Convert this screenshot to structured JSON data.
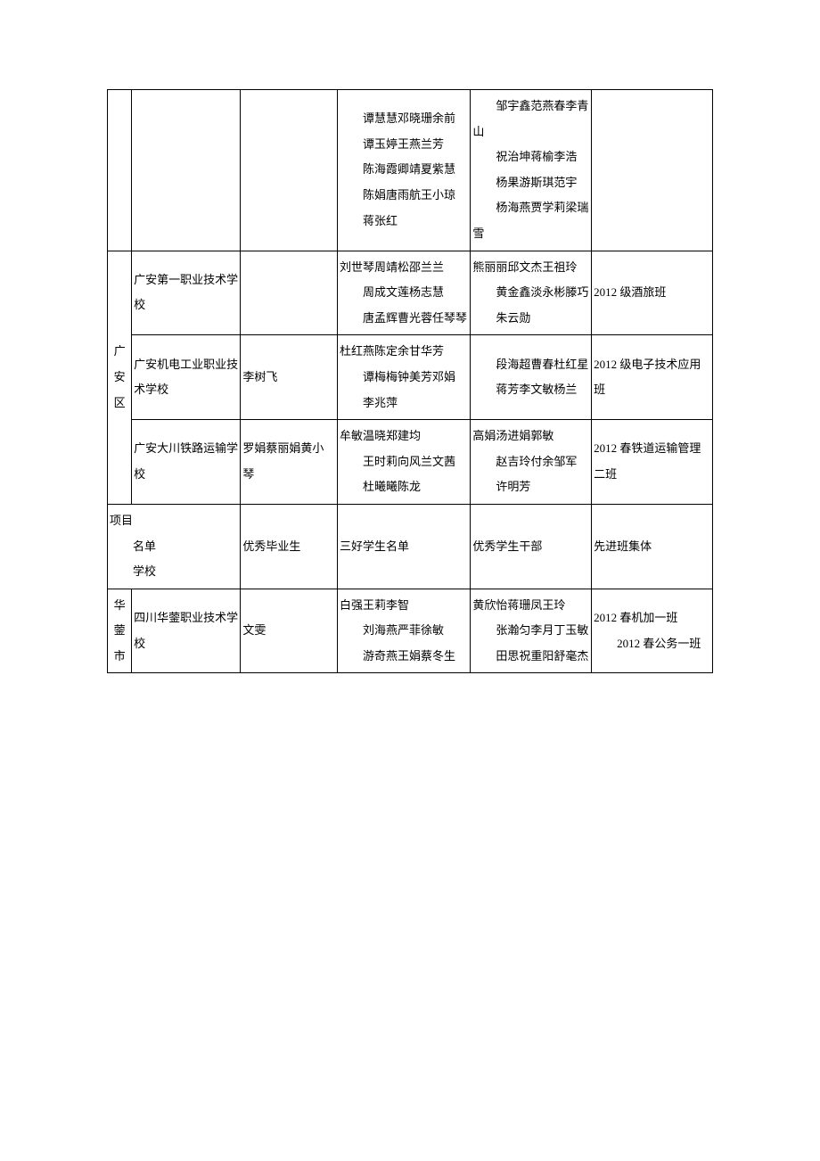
{
  "rows": [
    {
      "region": "",
      "school": "",
      "grad": "",
      "good": "　　谭慧慧邓晓珊余前\n\n　　谭玉婷王燕兰芳\n\n　　陈海霞卿靖夏紫慧\n\n　　陈娟唐雨航王小琼\n\n　　蒋张红",
      "leader": "　　邹宇鑫范燕春李青山\n\n　　祝治坤蒋榆李浩\n\n　　杨果游斯琪范宇\n\n　　杨海燕贾学莉梁瑞雪",
      "class": ""
    },
    {
      "region": "广安区",
      "regionRowspan": 3,
      "school": "广安第一职业技术学校",
      "grad": "",
      "good": "刘世琴周靖松邵兰兰\n\n　　周成文莲杨志慧\n\n　　唐孟辉曹光蓉任琴琴",
      "leader": "熊丽丽邱文杰王祖玲\n\n　　黄金鑫淡永彬滕巧\n\n　　朱云勋",
      "class": "2012 级酒旅班"
    },
    {
      "school": "广安机电工业职业技术学校",
      "grad": "李树飞",
      "good": "杜红燕陈定余甘华芳\n\n　　谭梅梅钟美芳邓娟\n\n　　李兆萍",
      "leader": "　　段海超曹春杜红星\n\n　　蒋芳李文敏杨兰",
      "class": "2012 级电子技术应用班"
    },
    {
      "school": "广安大川铁路运输学校",
      "grad": "罗娟蔡丽娟黄小琴",
      "good": "牟敏温晓郑建均\n\n　　王时莉向风兰文茜\n\n　　杜曦曦陈龙",
      "leader": "高娟汤进娟郭敏\n\n　　赵吉玲付余邹军\n\n　　许明芳",
      "class": "2012 春铁道运输管理二班"
    },
    {
      "region": "项目\n\n　　名单\n\n　　学校",
      "regionColspan": 2,
      "grad": "优秀毕业生",
      "good": "三好学生名单",
      "leader": "优秀学生干部",
      "class": "先进班集体"
    },
    {
      "region": "华蓥市",
      "school": "四川华蓥职业技术学校",
      "grad": "文雯",
      "good": "白强王莉李智\n\n　　刘海燕严菲徐敏\n\n　　游奇燕王娟蔡冬生",
      "leader": "黄欣怡蒋珊凤王玲\n\n　　张瀚匀李月丁玉敏\n\n　　田思祝重阳舒毫杰",
      "class": "2012 春机加一班\n\n　　2012 春公务一班"
    }
  ]
}
